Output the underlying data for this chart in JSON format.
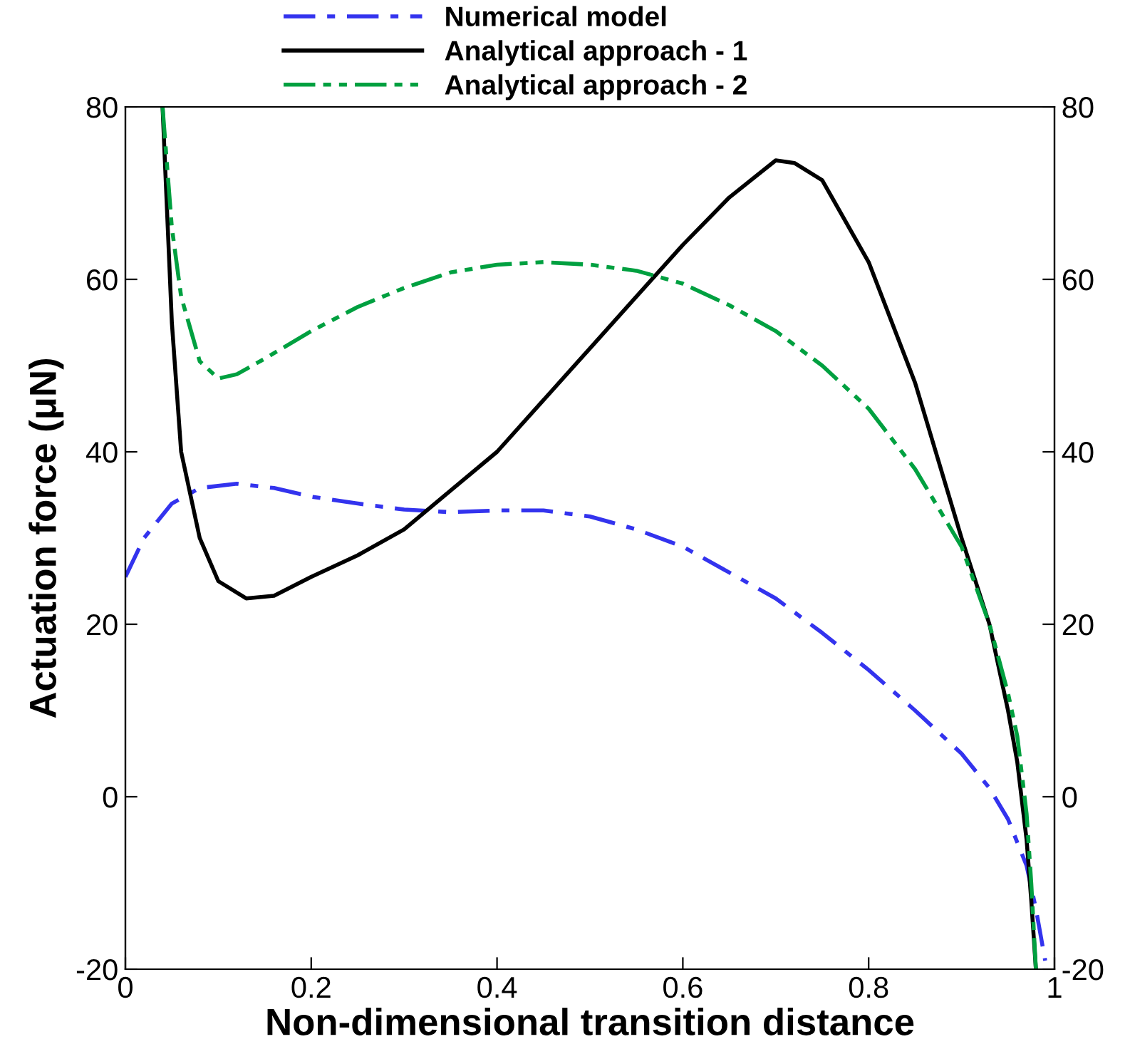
{
  "chart_data": {
    "type": "line",
    "xlabel": "Non-dimensional transition distance",
    "ylabel": "Actuation force (μN)",
    "xlim": [
      0,
      1
    ],
    "xticks": [
      0,
      0.2,
      0.4,
      0.6,
      0.8,
      1
    ],
    "ylim": [
      -20,
      80
    ],
    "yticks": [
      -20,
      0,
      20,
      40,
      60,
      80
    ],
    "y2lim": [
      -20,
      80
    ],
    "y2ticks": [
      -20,
      0,
      20,
      40,
      60,
      80
    ],
    "legend": "top",
    "grid": false,
    "marker": "none",
    "series": [
      {
        "name": "Numerical model",
        "color": "#3333ee",
        "line_style": "dashdot",
        "x": [
          0,
          0.02,
          0.05,
          0.08,
          0.12,
          0.16,
          0.2,
          0.25,
          0.3,
          0.35,
          0.4,
          0.45,
          0.5,
          0.55,
          0.6,
          0.65,
          0.7,
          0.75,
          0.8,
          0.85,
          0.9,
          0.93,
          0.95,
          0.97,
          0.98,
          0.99
        ],
        "values": [
          25.5,
          30,
          34,
          35.8,
          36.3,
          35.8,
          34.8,
          34,
          33.3,
          33,
          33.2,
          33.2,
          32.5,
          31,
          29,
          26,
          23,
          19,
          14.7,
          10,
          5,
          1,
          -2.6,
          -8,
          -13,
          -19
        ]
      },
      {
        "name": "Analytical approach - 1",
        "color": "#000000",
        "line_style": "solid",
        "x": [
          0.04,
          0.05,
          0.06,
          0.08,
          0.1,
          0.13,
          0.16,
          0.2,
          0.25,
          0.3,
          0.35,
          0.4,
          0.45,
          0.5,
          0.55,
          0.6,
          0.65,
          0.7,
          0.72,
          0.75,
          0.8,
          0.85,
          0.9,
          0.93,
          0.95,
          0.96,
          0.97,
          0.975,
          0.98
        ],
        "values": [
          80,
          55,
          40,
          30,
          25,
          23,
          23.3,
          25.5,
          28,
          31,
          35.5,
          40,
          46,
          52,
          58,
          64,
          69.5,
          73.8,
          73.5,
          71.5,
          62,
          48,
          30,
          20,
          10,
          4,
          -5,
          -12,
          -20
        ]
      },
      {
        "name": "Analytical approach - 2",
        "color": "#00a040",
        "line_style": "dashdotdot",
        "x": [
          0.04,
          0.05,
          0.06,
          0.08,
          0.1,
          0.12,
          0.15,
          0.2,
          0.25,
          0.3,
          0.35,
          0.4,
          0.45,
          0.5,
          0.55,
          0.6,
          0.65,
          0.7,
          0.75,
          0.8,
          0.85,
          0.9,
          0.93,
          0.95,
          0.96,
          0.97,
          0.975,
          0.98
        ],
        "values": [
          80,
          66,
          58,
          50.5,
          48.5,
          49,
          50.8,
          54,
          56.8,
          59,
          60.8,
          61.7,
          62,
          61.7,
          61,
          59.5,
          57,
          54,
          50,
          45,
          38,
          29,
          20,
          12,
          7,
          -2,
          -10,
          -20
        ]
      }
    ]
  }
}
